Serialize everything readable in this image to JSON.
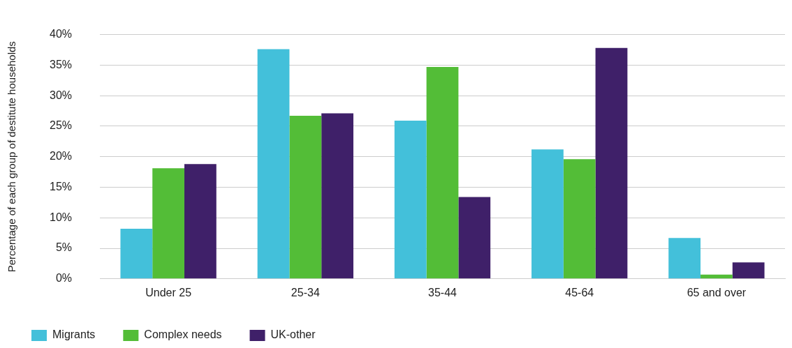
{
  "chart_data": {
    "type": "bar",
    "ylabel": "Percentage of each group of destitute households",
    "categories": [
      "Under 25",
      "25-34",
      "35-44",
      "45-64",
      "65 and over"
    ],
    "series": [
      {
        "name": "Migrants",
        "color": "#43c0da",
        "values": [
          8.2,
          37.6,
          25.9,
          21.2,
          6.7
        ]
      },
      {
        "name": "Complex needs",
        "color": "#53bd37",
        "values": [
          18.1,
          26.7,
          34.7,
          19.6,
          0.7
        ]
      },
      {
        "name": "UK-other",
        "color": "#3f2069",
        "values": [
          18.8,
          27.1,
          13.4,
          37.8,
          2.7
        ]
      }
    ],
    "ylim": [
      0,
      40
    ],
    "yticks": [
      {
        "value": 0,
        "label": "0%"
      },
      {
        "value": 5,
        "label": "5%"
      },
      {
        "value": 10,
        "label": "10%"
      },
      {
        "value": 15,
        "label": "15%"
      },
      {
        "value": 20,
        "label": "20%"
      },
      {
        "value": 25,
        "label": "25%"
      },
      {
        "value": 30,
        "label": "30%"
      },
      {
        "value": 35,
        "label": "35%"
      },
      {
        "value": 40,
        "label": "40%"
      }
    ],
    "grid": "y",
    "legend": "bottom"
  }
}
